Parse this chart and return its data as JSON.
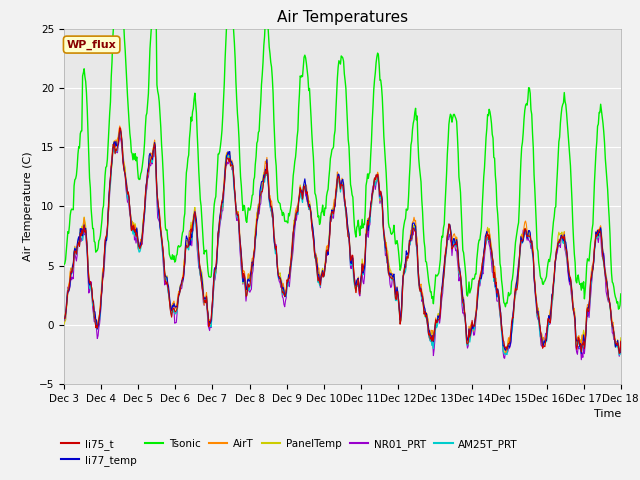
{
  "title": "Air Temperatures",
  "ylabel": "Air Temperature (C)",
  "xlabel": "Time",
  "ylim": [
    -5,
    25
  ],
  "yticks": [
    -5,
    0,
    5,
    10,
    15,
    20,
    25
  ],
  "xtick_labels": [
    "Dec 3",
    "Dec 4",
    "Dec 5",
    "Dec 6",
    "Dec 7",
    "Dec 8",
    "Dec 9",
    "Dec 10",
    "Dec 11",
    "Dec 12",
    "Dec 13",
    "Dec 14",
    "Dec 15",
    "Dec 16",
    "Dec 17",
    "Dec 18"
  ],
  "colors": {
    "li75_t": "#cc0000",
    "li77_temp": "#0000cc",
    "Tsonic": "#00ee00",
    "AirT": "#ff8800",
    "PanelTemp": "#cccc00",
    "NR01_PRT": "#9900cc",
    "AM25T_PRT": "#00cccc"
  },
  "background_color": "#e8e8e8",
  "legend_box": {
    "text": "WP_flux",
    "facecolor": "#ffffcc",
    "edgecolor": "#cc8800",
    "textcolor": "#880000"
  },
  "grid_color": "#ffffff",
  "title_fontsize": 11,
  "label_fontsize": 8,
  "tick_fontsize": 7.5
}
